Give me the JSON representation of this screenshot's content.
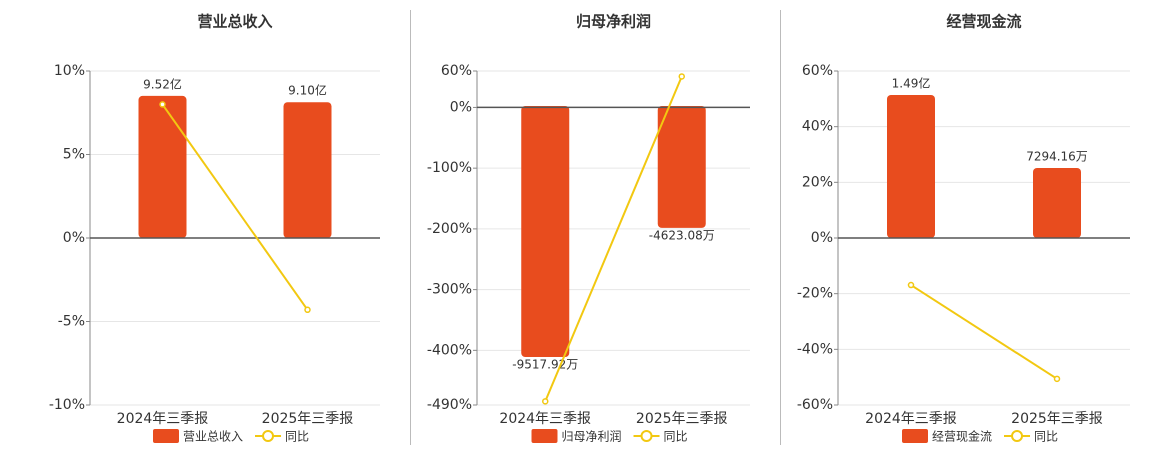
{
  "chart_data": [
    {
      "type": "bar",
      "title": "营业总收入",
      "categories": [
        "2024年三季报",
        "2025年三季报"
      ],
      "series": [
        {
          "name": "营业总收入",
          "color": "#e84c1e",
          "axis": "y2",
          "values": [
            952000000,
            910000000
          ],
          "value_labels": [
            "9.52亿",
            "9.10亿"
          ]
        },
        {
          "name": "同比",
          "type": "line",
          "color": "#f2c811",
          "values": [
            8,
            -4.3
          ]
        }
      ],
      "ylim": [
        -10,
        10
      ],
      "yticks": [
        {
          "value": 10,
          "label": "10%"
        },
        {
          "value": 5,
          "label": "5%"
        },
        {
          "value": 0,
          "label": "0%"
        },
        {
          "value": -5,
          "label": "-5%"
        },
        {
          "value": -10,
          "label": "-10%"
        }
      ],
      "y2lim": [
        -1119000000,
        1119000000
      ],
      "grid": true
    },
    {
      "type": "bar",
      "title": "归母净利润",
      "categories": [
        "2024年三季报",
        "2025年三季报"
      ],
      "series": [
        {
          "name": "归母净利润",
          "color": "#e84c1e",
          "axis": "y2",
          "values": [
            -95179200,
            -46230800
          ],
          "value_labels": [
            "-9517.92万",
            "-4623.08万"
          ]
        },
        {
          "name": "同比",
          "type": "line",
          "color": "#f2c811",
          "values": [
            -484,
            51
          ]
        }
      ],
      "ylim": [
        -490,
        60
      ],
      "yticks": [
        {
          "value": 60,
          "label": "60%"
        },
        {
          "value": 0,
          "label": "0%"
        },
        {
          "value": -100,
          "label": "-100%"
        },
        {
          "value": -200,
          "label": "-200%"
        },
        {
          "value": -300,
          "label": "-300%"
        },
        {
          "value": -400,
          "label": "-400%"
        },
        {
          "value": -490,
          "label": "-490%"
        }
      ],
      "y2lim": [
        -113380000,
        13270000
      ],
      "grid": true
    },
    {
      "type": "bar",
      "title": "经营现金流",
      "categories": [
        "2024年三季报",
        "2025年三季报"
      ],
      "series": [
        {
          "name": "经营现金流",
          "color": "#e84c1e",
          "axis": "y2",
          "values": [
            149000000,
            72941600
          ],
          "value_labels": [
            "1.49亿",
            "7294.16万"
          ]
        },
        {
          "name": "同比",
          "type": "line",
          "color": "#f2c811",
          "values": [
            -16.9,
            -50.6
          ]
        }
      ],
      "ylim": [
        -60,
        60
      ],
      "yticks": [
        {
          "value": 60,
          "label": "60%"
        },
        {
          "value": 40,
          "label": "40%"
        },
        {
          "value": 20,
          "label": "20%"
        },
        {
          "value": 0,
          "label": "0%"
        },
        {
          "value": -20,
          "label": "-20%"
        },
        {
          "value": -40,
          "label": "-40%"
        },
        {
          "value": -60,
          "label": "-60%"
        }
      ],
      "y2lim": [
        -174000000,
        174000000
      ],
      "grid": true
    }
  ]
}
